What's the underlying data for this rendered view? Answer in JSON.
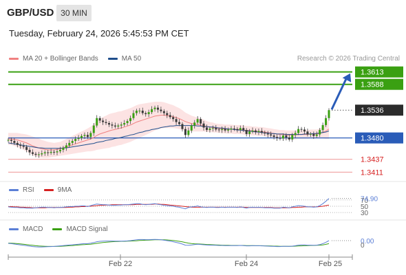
{
  "header": {
    "pair": "GBP/USD",
    "timeframe": "30 MIN",
    "datetime": "Tuesday, February 24, 2026 5:45:53 PM CET"
  },
  "legend": {
    "items": [
      {
        "label": "MA 20 + Bollinger Bands",
        "color": "#f08080"
      },
      {
        "label": "MA 50",
        "color": "#1f4e8c"
      }
    ],
    "credit": "Research © 2026 Trading Central"
  },
  "rsi_legend": {
    "items": [
      {
        "label": "RSI",
        "color": "#5b7fd6"
      },
      {
        "label": "9MA",
        "color": "#d62020"
      }
    ]
  },
  "macd_legend": {
    "items": [
      {
        "label": "MACD",
        "color": "#5b7fd6"
      },
      {
        "label": "MACD Signal",
        "color": "#3aa012"
      }
    ]
  },
  "chart_data": {
    "type": "candlestick",
    "price_axis": {
      "min": 1.3395,
      "max": 1.3625
    },
    "x_labels": [
      "Feb 22",
      "Feb 24",
      "Feb 25"
    ],
    "levels": [
      {
        "value": 1.3613,
        "label": "1.3613",
        "kind": "resistance",
        "color": "#3aa012"
      },
      {
        "value": 1.3588,
        "label": "1.3588",
        "kind": "resistance",
        "color": "#3aa012"
      },
      {
        "value": 1.3536,
        "label": "1.3536",
        "kind": "last",
        "color": "#333333"
      },
      {
        "value": 1.348,
        "label": "1.3480",
        "kind": "pivot",
        "color": "#2a5cb8"
      },
      {
        "value": 1.3437,
        "label": "1.3437",
        "kind": "support",
        "color": "#d62020"
      },
      {
        "value": 1.3411,
        "label": "1.3411",
        "kind": "support",
        "color": "#d62020"
      }
    ],
    "close": [
      1.3476,
      1.3474,
      1.347,
      1.3466,
      1.3464,
      1.3462,
      1.3456,
      1.3451,
      1.3448,
      1.3446,
      1.3447,
      1.3449,
      1.3451,
      1.345,
      1.3452,
      1.3451,
      1.3453,
      1.3456,
      1.346,
      1.3465,
      1.347,
      1.3474,
      1.3478,
      1.348,
      1.3484,
      1.3486,
      1.3482,
      1.349,
      1.3505,
      1.352,
      1.3515,
      1.3512,
      1.351,
      1.3507,
      1.3505,
      1.3503,
      1.3505,
      1.3507,
      1.351,
      1.3514,
      1.352,
      1.353,
      1.3535,
      1.3535,
      1.353,
      1.3528,
      1.3532,
      1.3538,
      1.3541,
      1.3537,
      1.3534,
      1.353,
      1.3526,
      1.3522,
      1.3518,
      1.3512,
      1.3508,
      1.3498,
      1.3486,
      1.3495,
      1.3505,
      1.3511,
      1.3518,
      1.3509,
      1.3501,
      1.3496,
      1.3499,
      1.35,
      1.3497,
      1.3496,
      1.3498,
      1.3495,
      1.3497,
      1.3499,
      1.3498,
      1.3496,
      1.35,
      1.3496,
      1.3488,
      1.3493,
      1.3495,
      1.3492,
      1.3494,
      1.3491,
      1.3489,
      1.3487,
      1.3485,
      1.3482,
      1.348,
      1.3479,
      1.3485,
      1.3481,
      1.3477,
      1.3486,
      1.349,
      1.3498,
      1.3497,
      1.3493,
      1.3487,
      1.3488,
      1.3484,
      1.3487,
      1.3496,
      1.3506,
      1.352,
      1.3536
    ],
    "ma20": [
      1.3478,
      1.3478,
      1.3477,
      1.3476,
      1.3474,
      1.3472,
      1.347,
      1.3467,
      1.3464,
      1.3462,
      1.346,
      1.3458,
      1.3457,
      1.3456,
      1.3456,
      1.3456,
      1.3457,
      1.3458,
      1.346,
      1.3462,
      1.3464,
      1.3466,
      1.3468,
      1.347,
      1.3472,
      1.3474,
      1.3476,
      1.3478,
      1.3481,
      1.3485,
      1.3488,
      1.349,
      1.3492,
      1.3494,
      1.3496,
      1.3497,
      1.3499,
      1.35,
      1.3502,
      1.3504,
      1.3506,
      1.3509,
      1.3512,
      1.3514,
      1.3516,
      1.3518,
      1.352,
      1.3522,
      1.3524,
      1.3525,
      1.3526,
      1.3526,
      1.3525,
      1.3524,
      1.3523,
      1.3521,
      1.3519,
      1.3516,
      1.3513,
      1.3511,
      1.3509,
      1.3508,
      1.3507,
      1.3506,
      1.3505,
      1.3503,
      1.3502,
      1.3501,
      1.35,
      1.3499,
      1.3499,
      1.3498,
      1.3498,
      1.3498,
      1.3497,
      1.3497,
      1.3497,
      1.3496,
      1.3495,
      1.3495,
      1.3494,
      1.3494,
      1.3493,
      1.3493,
      1.3492,
      1.3491,
      1.349,
      1.3489,
      1.3488,
      1.3487,
      1.3487,
      1.3486,
      1.3486,
      1.3486,
      1.3486,
      1.3487,
      1.3487,
      1.3487,
      1.3487,
      1.3488,
      1.3488,
      1.3488,
      1.3489,
      1.3491,
      1.3494,
      1.3498
    ],
    "ma50": [
      1.347,
      1.3469,
      1.3468,
      1.3467,
      1.3466,
      1.3465,
      1.3464,
      1.3463,
      1.3462,
      1.3461,
      1.346,
      1.346,
      1.3459,
      1.3459,
      1.3459,
      1.3459,
      1.3459,
      1.3459,
      1.346,
      1.346,
      1.3461,
      1.3462,
      1.3463,
      1.3464,
      1.3465,
      1.3466,
      1.3467,
      1.3468,
      1.3469,
      1.3471,
      1.3472,
      1.3473,
      1.3475,
      1.3476,
      1.3477,
      1.3479,
      1.348,
      1.3481,
      1.3483,
      1.3484,
      1.3486,
      1.3487,
      1.3489,
      1.3491,
      1.3492,
      1.3494,
      1.3495,
      1.3497,
      1.3498,
      1.3499,
      1.3501,
      1.3502,
      1.3503,
      1.3504,
      1.3504,
      1.3505,
      1.3505,
      1.3505,
      1.3505,
      1.3505,
      1.3505,
      1.3505,
      1.3504,
      1.3504,
      1.3503,
      1.3503,
      1.3502,
      1.3502,
      1.3501,
      1.35,
      1.35,
      1.3499,
      1.3498,
      1.3498,
      1.3497,
      1.3496,
      1.3496,
      1.3495,
      1.3494,
      1.3494,
      1.3493,
      1.3492,
      1.3492,
      1.3491,
      1.349,
      1.349,
      1.3489,
      1.3489,
      1.3488,
      1.3488,
      1.3488,
      1.3487,
      1.3487,
      1.3487,
      1.3487,
      1.3487,
      1.3487,
      1.3488,
      1.3488,
      1.3488,
      1.3489,
      1.3489,
      1.349,
      1.3491,
      1.3492,
      1.3494
    ],
    "bb_width": [
      0.0012,
      0.0012,
      0.0013,
      0.0014,
      0.0015,
      0.0016,
      0.0017,
      0.0018,
      0.0019,
      0.0019,
      0.0019,
      0.0018,
      0.0017,
      0.0016,
      0.0015,
      0.0014,
      0.0014,
      0.0014,
      0.0015,
      0.0016,
      0.0017,
      0.0018,
      0.0019,
      0.002,
      0.0021,
      0.0022,
      0.0023,
      0.0025,
      0.0027,
      0.0029,
      0.0031,
      0.0032,
      0.0033,
      0.0034,
      0.0034,
      0.0034,
      0.0034,
      0.0034,
      0.0034,
      0.0034,
      0.0034,
      0.0034,
      0.0034,
      0.0034,
      0.0033,
      0.0032,
      0.0031,
      0.003,
      0.0029,
      0.0028,
      0.0027,
      0.0026,
      0.0025,
      0.0024,
      0.0023,
      0.0022,
      0.0021,
      0.002,
      0.0018,
      0.0017,
      0.0016,
      0.0015,
      0.0014,
      0.0013,
      0.0012,
      0.0011,
      0.001,
      0.001,
      0.0009,
      0.0009,
      0.0009,
      0.0009,
      0.0009,
      0.0009,
      0.0009,
      0.0009,
      0.0009,
      0.0009,
      0.0009,
      0.0009,
      0.0009,
      0.0009,
      0.0009,
      0.0009,
      0.0009,
      0.0009,
      0.0009,
      0.0009,
      0.0009,
      0.0009,
      0.0009,
      0.0009,
      0.0009,
      0.0009,
      0.0009,
      0.0009,
      0.0009,
      0.0009,
      0.0009,
      0.0009,
      0.0009,
      0.0009,
      0.001,
      0.0012,
      0.0016,
      0.002
    ],
    "rsi": {
      "value_label": "74.90",
      "levels": [
        70,
        50,
        30
      ],
      "level_labels": [
        "70",
        "50",
        "30"
      ],
      "range": [
        15,
        85
      ],
      "rsi": [
        48,
        47,
        46,
        46,
        45,
        45,
        44,
        44,
        44,
        45,
        46,
        47,
        47,
        46,
        46,
        45,
        46,
        46,
        47,
        48,
        49,
        49,
        50,
        50,
        51,
        51,
        49,
        52,
        55,
        57,
        56,
        55,
        55,
        54,
        53,
        53,
        54,
        54,
        55,
        55,
        56,
        57,
        58,
        58,
        56,
        55,
        56,
        57,
        58,
        56,
        55,
        53,
        52,
        51,
        50,
        48,
        47,
        44,
        42,
        46,
        48,
        49,
        51,
        48,
        47,
        46,
        47,
        47,
        46,
        46,
        47,
        46,
        47,
        47,
        47,
        46,
        48,
        46,
        44,
        46,
        47,
        46,
        47,
        46,
        45,
        45,
        45,
        44,
        44,
        44,
        47,
        46,
        45,
        48,
        50,
        52,
        51,
        50,
        48,
        48,
        47,
        48,
        52,
        58,
        66,
        74.9
      ],
      "ma9": [
        49,
        49,
        48,
        48,
        47,
        47,
        46,
        46,
        45,
        45,
        45,
        45,
        45,
        46,
        46,
        46,
        46,
        46,
        46,
        46,
        47,
        47,
        48,
        48,
        49,
        49,
        50,
        50,
        51,
        52,
        53,
        53,
        54,
        54,
        55,
        55,
        55,
        55,
        55,
        55,
        55,
        55,
        56,
        56,
        56,
        56,
        56,
        56,
        57,
        57,
        56,
        56,
        55,
        54,
        53,
        52,
        51,
        50,
        49,
        48,
        47,
        47,
        47,
        47,
        47,
        47,
        47,
        47,
        47,
        47,
        47,
        47,
        47,
        47,
        47,
        47,
        47,
        47,
        46,
        46,
        46,
        46,
        46,
        46,
        46,
        46,
        46,
        45,
        45,
        45,
        45,
        45,
        45,
        46,
        46,
        47,
        47,
        48,
        48,
        48,
        48,
        48,
        49,
        50,
        52,
        54
      ]
    },
    "macd": {
      "value_label": "0.00",
      "zero_label": "0",
      "range": [
        -0.0008,
        0.0008
      ],
      "macd": [
        0.0001,
        8e-05,
        5e-05,
        2e-05,
        -1e-05,
        -4e-05,
        -7e-05,
        -0.0001,
        -0.00013,
        -0.00015,
        -0.00016,
        -0.00016,
        -0.00015,
        -0.00014,
        -0.00013,
        -0.00012,
        -0.0001,
        -8e-05,
        -6e-05,
        -4e-05,
        -2e-05,
        0.0,
        2e-05,
        4e-05,
        6e-05,
        8e-05,
        8e-05,
        0.00011,
        0.00016,
        0.00022,
        0.00025,
        0.00026,
        0.00027,
        0.00027,
        0.00027,
        0.00026,
        0.00026,
        0.00026,
        0.00027,
        0.00028,
        0.0003,
        0.00033,
        0.00036,
        0.00038,
        0.00038,
        0.00037,
        0.00037,
        0.00038,
        0.00039,
        0.00038,
        0.00036,
        0.00033,
        0.0003,
        0.00026,
        0.00022,
        0.00017,
        0.00012,
        5e-05,
        -3e-05,
        -4e-05,
        -2e-05,
        1e-05,
        4e-05,
        2e-05,
        0.0,
        -2e-05,
        -3e-05,
        -3e-05,
        -4e-05,
        -5e-05,
        -5e-05,
        -6e-05,
        -6e-05,
        -6e-05,
        -6e-05,
        -6e-05,
        -5e-05,
        -6e-05,
        -8e-05,
        -8e-05,
        -7e-05,
        -7e-05,
        -7e-05,
        -8e-05,
        -9e-05,
        -0.0001,
        -0.00011,
        -0.00012,
        -0.00013,
        -0.00013,
        -0.00011,
        -0.00011,
        -0.00012,
        -0.0001,
        -7e-05,
        -3e-05,
        -1e-05,
        -1e-05,
        -3e-05,
        -3e-05,
        -4e-05,
        -3e-05,
        1e-05,
        8e-05,
        0.00018,
        0.0003
      ],
      "signal": [
        0.00012,
        0.00011,
        0.0001,
        8e-05,
        6e-05,
        4e-05,
        1e-05,
        -2e-05,
        -4e-05,
        -7e-05,
        -9e-05,
        -0.0001,
        -0.00011,
        -0.00012,
        -0.00012,
        -0.00012,
        -0.00012,
        -0.00011,
        -0.0001,
        -9e-05,
        -7e-05,
        -6e-05,
        -4e-05,
        -2e-05,
        0.0,
        1e-05,
        3e-05,
        4e-05,
        7e-05,
        0.0001,
        0.00013,
        0.00016,
        0.00018,
        0.0002,
        0.00022,
        0.00023,
        0.00024,
        0.00025,
        0.00025,
        0.00026,
        0.00027,
        0.00028,
        0.00029,
        0.00031,
        0.00032,
        0.00033,
        0.00034,
        0.00035,
        0.00036,
        0.00036,
        0.00036,
        0.00036,
        0.00035,
        0.00033,
        0.00031,
        0.00028,
        0.00025,
        0.00021,
        0.00016,
        0.00012,
        9e-05,
        7e-05,
        6e-05,
        5e-05,
        4e-05,
        2e-05,
        1e-05,
        0.0,
        -1e-05,
        -2e-05,
        -3e-05,
        -4e-05,
        -4e-05,
        -5e-05,
        -5e-05,
        -5e-05,
        -5e-05,
        -5e-05,
        -6e-05,
        -6e-05,
        -6e-05,
        -7e-05,
        -7e-05,
        -7e-05,
        -8e-05,
        -8e-05,
        -9e-05,
        -0.0001,
        -0.0001,
        -0.00011,
        -0.00011,
        -0.00011,
        -0.00011,
        -0.00011,
        -0.0001,
        -9e-05,
        -8e-05,
        -7e-05,
        -6e-05,
        -5e-05,
        -5e-05,
        -4e-05,
        -3e-05,
        -1e-05,
        3e-05,
        8e-05
      ]
    },
    "projection": {
      "from": 1.3536,
      "to": 1.3613
    }
  }
}
